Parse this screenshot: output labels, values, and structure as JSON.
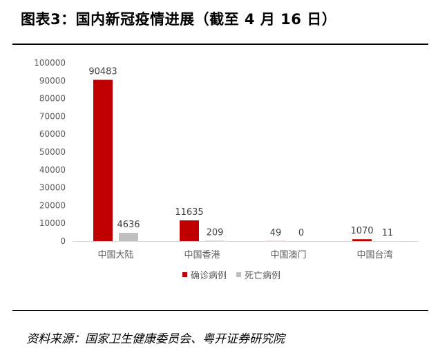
{
  "title": "图表3：国内新冠疫情进展（截至 4 月 16 日）",
  "source": "资料来源：国家卫生健康委员会、粤开证券研究院",
  "colors": {
    "confirmed": "#c00000",
    "deaths": "#bfbfbf",
    "axis": "#d9d9d9",
    "text": "#595959"
  },
  "chart_data": {
    "type": "bar",
    "categories": [
      "中国大陆",
      "中国香港",
      "中国澳门",
      "中国台湾"
    ],
    "series": [
      {
        "name": "确诊病例",
        "values": [
          90483,
          11635,
          49,
          1070
        ]
      },
      {
        "name": "死亡病例",
        "values": [
          4636,
          209,
          0,
          11
        ]
      }
    ],
    "ylim": [
      0,
      100000
    ],
    "yticks": [
      "0",
      "10000",
      "20000",
      "30000",
      "40000",
      "50000",
      "60000",
      "70000",
      "80000",
      "90000",
      "100000"
    ],
    "grid": false,
    "legend": "bottom"
  }
}
